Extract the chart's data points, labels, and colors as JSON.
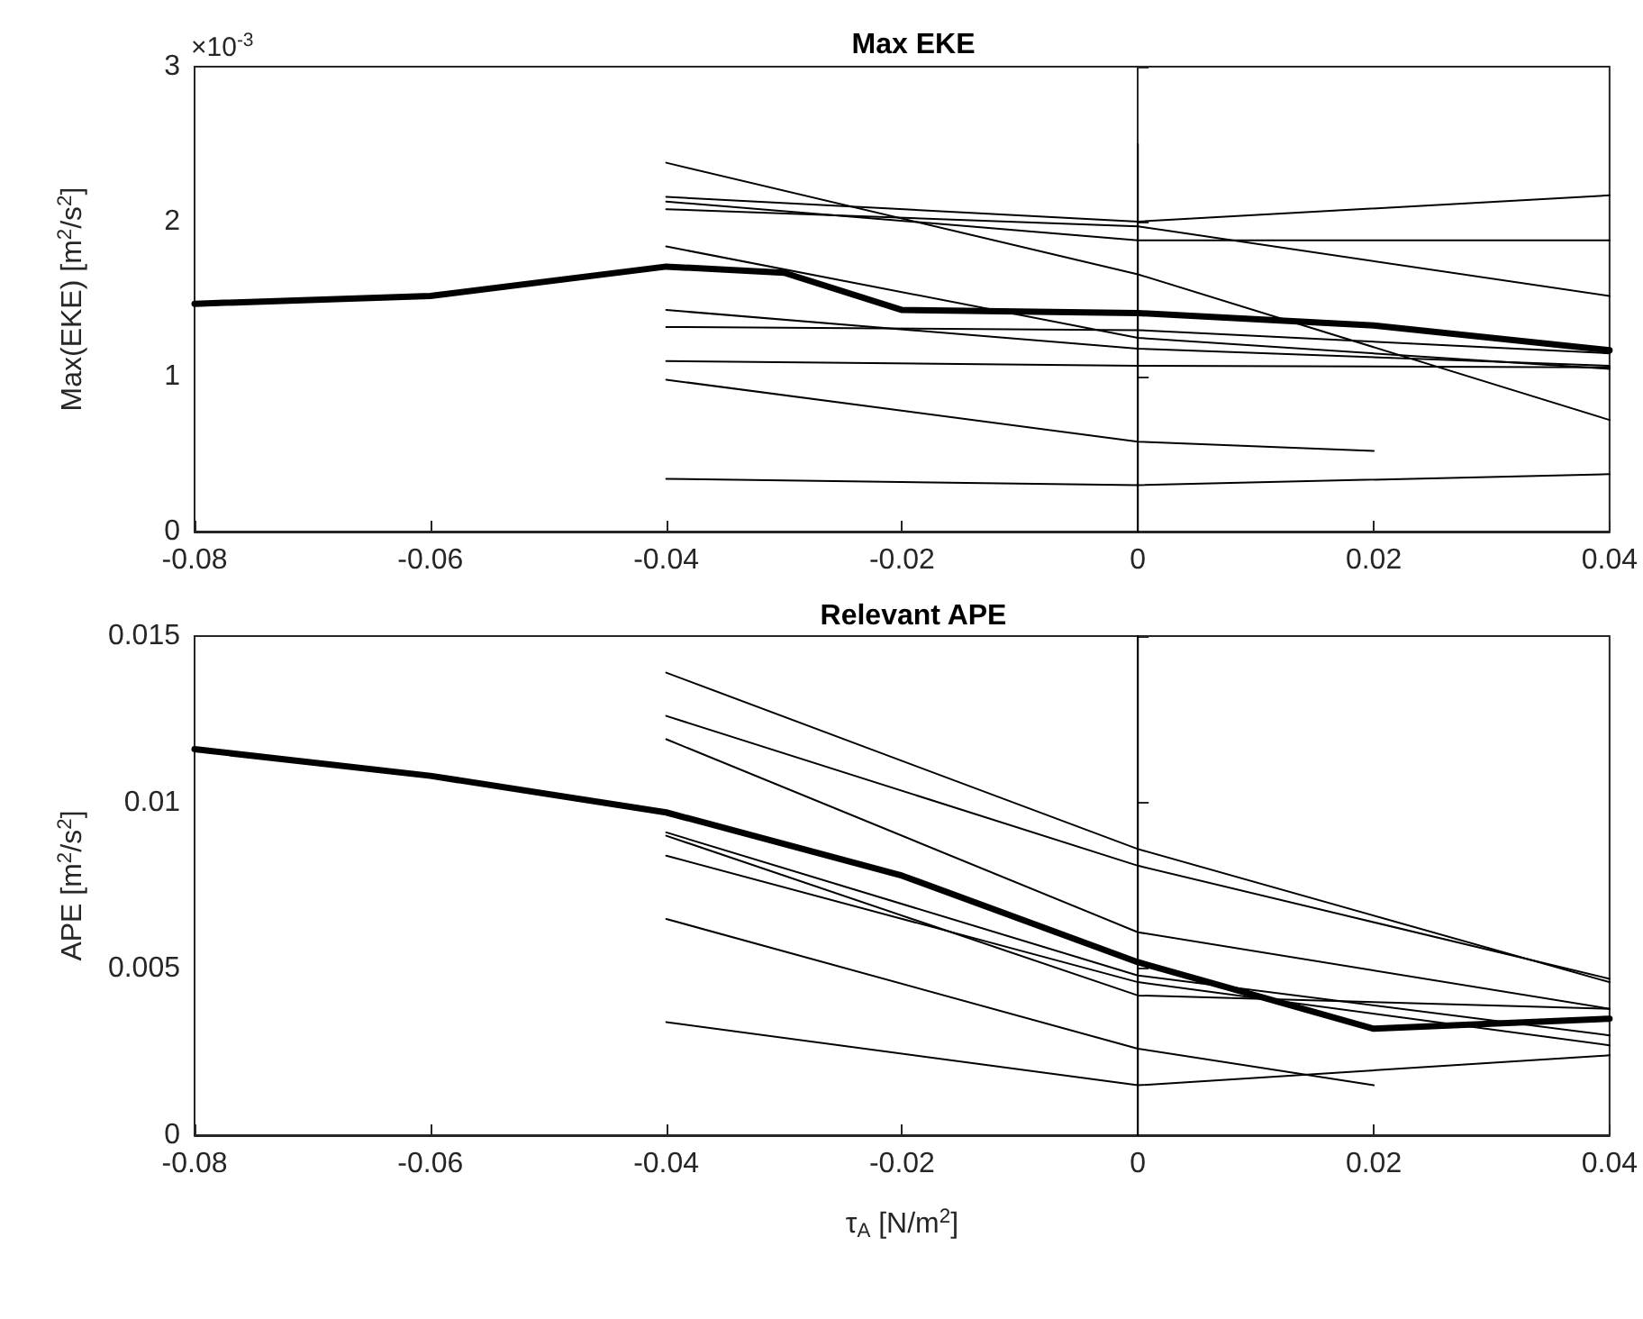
{
  "chart_data": [
    {
      "type": "line",
      "title": "Max EKE",
      "ylabel": "Max(EKE) [m$^{2}$/s$^{2}$]",
      "annotations": [
        "×10$^{-3}$"
      ],
      "xlim": [
        -0.08,
        0.04
      ],
      "xticks": [
        -0.08,
        -0.06,
        -0.04,
        -0.02,
        0,
        0.02,
        0.04
      ],
      "ylim": [
        0,
        3
      ],
      "yticks": [
        0,
        1,
        2,
        3
      ],
      "marker": "none",
      "line_style": "solid",
      "series": [
        {
          "color": "#000000",
          "x": [
            -0.08,
            -0.06,
            -0.04,
            -0.03,
            -0.02,
            0,
            0.02,
            0.04
          ],
          "values": [
            1.47,
            1.52,
            1.71,
            1.67,
            1.43,
            1.41,
            1.33,
            1.17
          ]
        },
        {
          "color": "#000000",
          "x": [
            -0.04,
            0,
            0.04
          ],
          "values": [
            2.38,
            1.66,
            0.72
          ]
        },
        {
          "color": "#000000",
          "x": [
            -0.04,
            0,
            0.04
          ],
          "values": [
            2.16,
            2.0,
            2.17
          ]
        },
        {
          "color": "#000000",
          "x": [
            -0.04,
            0,
            0.04
          ],
          "values": [
            2.13,
            1.88,
            1.88
          ]
        },
        {
          "color": "#000000",
          "x": [
            -0.04,
            0,
            0.04
          ],
          "values": [
            2.08,
            1.97,
            1.52
          ]
        },
        {
          "color": "#000000",
          "x": [
            -0.04,
            0,
            0.04
          ],
          "values": [
            1.84,
            1.25,
            1.05
          ]
        },
        {
          "color": "#000000",
          "x": [
            -0.04,
            0,
            0.04
          ],
          "values": [
            1.43,
            1.18,
            1.07
          ]
        },
        {
          "color": "#000000",
          "x": [
            -0.04,
            0,
            0.04
          ],
          "values": [
            1.32,
            1.3,
            1.15
          ]
        },
        {
          "color": "#000000",
          "x": [
            -0.04,
            0,
            0.04
          ],
          "values": [
            1.1,
            1.07,
            1.06
          ]
        },
        {
          "color": "#000000",
          "x": [
            -0.04,
            0,
            0.02
          ],
          "values": [
            0.98,
            0.58,
            0.52
          ]
        },
        {
          "color": "#000000",
          "x": [
            -0.04,
            0,
            0.04
          ],
          "values": [
            0.34,
            0.3,
            0.37
          ]
        },
        {
          "color": "#000000",
          "x": [
            0,
            0
          ],
          "values": [
            0,
            2.5
          ]
        }
      ]
    },
    {
      "type": "line",
      "title": "Relevant APE",
      "xlabel": "τ$_{A}$ [N/m$^{2}$]",
      "ylabel": "APE [m$^{2}$/s$^{2}$]",
      "xlim": [
        -0.08,
        0.04
      ],
      "xticks": [
        -0.08,
        -0.06,
        -0.04,
        -0.02,
        0,
        0.02,
        0.04
      ],
      "ylim": [
        0,
        0.015
      ],
      "yticks": [
        0,
        0.005,
        0.01,
        0.015
      ],
      "marker": "none",
      "line_style": "solid",
      "series": [
        {
          "color": "#000000",
          "x": [
            -0.08,
            -0.06,
            -0.04,
            -0.02,
            0,
            0.02,
            0.04
          ],
          "values": [
            0.0116,
            0.0108,
            0.0097,
            0.0078,
            0.0052,
            0.0032,
            0.0035
          ]
        },
        {
          "color": "#000000",
          "x": [
            -0.04,
            0,
            0.04
          ],
          "values": [
            0.0139,
            0.0086,
            0.0046
          ]
        },
        {
          "color": "#000000",
          "x": [
            -0.04,
            0,
            0.04
          ],
          "values": [
            0.0126,
            0.0081,
            0.0047
          ]
        },
        {
          "color": "#000000",
          "x": [
            -0.04,
            0,
            0.04
          ],
          "values": [
            0.0119,
            0.0061,
            0.0038
          ]
        },
        {
          "color": "#000000",
          "x": [
            -0.04,
            0,
            0.04
          ],
          "values": [
            0.0091,
            0.0048,
            0.003
          ]
        },
        {
          "color": "#000000",
          "x": [
            -0.04,
            0,
            0.04
          ],
          "values": [
            0.009,
            0.0042,
            0.0038
          ]
        },
        {
          "color": "#000000",
          "x": [
            -0.04,
            0,
            0.04
          ],
          "values": [
            0.0084,
            0.0046,
            0.0027
          ]
        },
        {
          "color": "#000000",
          "x": [
            -0.04,
            0,
            0.02
          ],
          "values": [
            0.0065,
            0.0026,
            0.0015
          ]
        },
        {
          "color": "#000000",
          "x": [
            -0.04,
            0,
            0.04
          ],
          "values": [
            0.0034,
            0.0015,
            0.0024
          ]
        },
        {
          "color": "#000000",
          "x": [
            0,
            0
          ],
          "values": [
            0,
            0.015
          ]
        }
      ]
    }
  ]
}
